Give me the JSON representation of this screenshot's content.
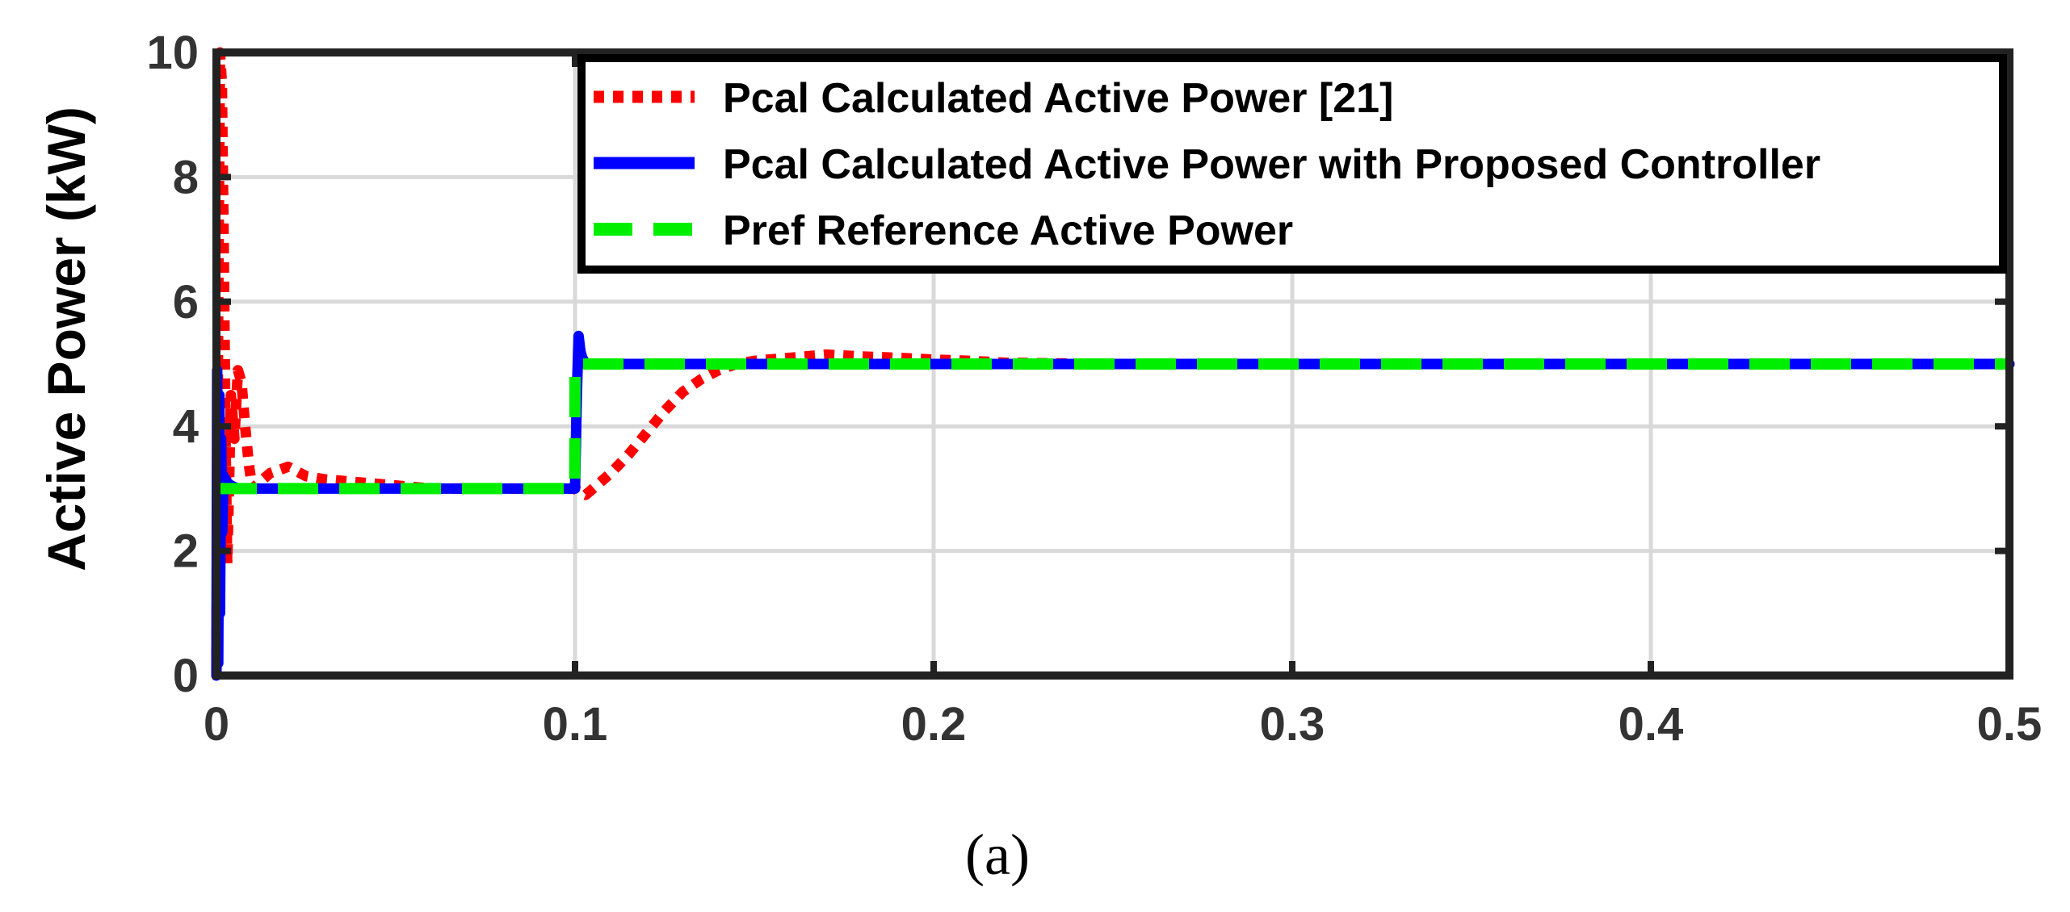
{
  "chart_data": {
    "type": "line",
    "title": "",
    "xlabel": "",
    "ylabel": "Active Power (kW)",
    "caption": "(a)",
    "xlim": [
      0,
      0.5
    ],
    "ylim": [
      0,
      10
    ],
    "xticks": [
      0,
      0.1,
      0.2,
      0.3,
      0.4,
      0.5
    ],
    "xtick_labels": [
      "0",
      "0.1",
      "0.2",
      "0.3",
      "0.4",
      "0.5"
    ],
    "yticks": [
      0,
      2,
      4,
      6,
      8,
      10
    ],
    "ytick_labels": [
      "0",
      "2",
      "4",
      "6",
      "8",
      "10"
    ],
    "grid": true,
    "legend_position": "top-right",
    "series": [
      {
        "name": "Pcal Calculated Active Power [21]",
        "color": "#ff0000",
        "style": "dotted",
        "x": [
          0,
          0.0005,
          0.001,
          0.0015,
          0.002,
          0.0025,
          0.003,
          0.0035,
          0.004,
          0.005,
          0.006,
          0.007,
          0.008,
          0.009,
          0.01,
          0.012,
          0.015,
          0.02,
          0.025,
          0.03,
          0.04,
          0.05,
          0.06,
          0.07,
          0.08,
          0.09,
          0.1,
          0.101,
          0.103,
          0.105,
          0.11,
          0.115,
          0.12,
          0.125,
          0.13,
          0.135,
          0.14,
          0.145,
          0.15,
          0.16,
          0.17,
          0.18,
          0.19,
          0.2,
          0.21,
          0.22,
          0.25,
          0.3,
          0.4,
          0.5
        ],
        "y": [
          0,
          6,
          10,
          9.5,
          7,
          4,
          1.8,
          3,
          4.5,
          3.8,
          4.9,
          4.7,
          4.0,
          3.4,
          3.0,
          3.1,
          3.25,
          3.35,
          3.2,
          3.15,
          3.1,
          3.05,
          3.0,
          3.0,
          3.0,
          3.0,
          3.0,
          2.95,
          2.9,
          3.0,
          3.25,
          3.55,
          3.9,
          4.25,
          4.55,
          4.75,
          4.9,
          5.0,
          5.05,
          5.1,
          5.15,
          5.12,
          5.1,
          5.07,
          5.05,
          5.02,
          5.0,
          5.0,
          5.0,
          5.0
        ]
      },
      {
        "name": "Pcal Calculated Active Power with Proposed Controller",
        "color": "#0000ff",
        "style": "solid",
        "x": [
          0,
          0.0002,
          0.0005,
          0.0008,
          0.001,
          0.0013,
          0.0016,
          0.002,
          0.003,
          0.004,
          0.006,
          0.01,
          0.05,
          0.0995,
          0.1,
          0.1005,
          0.101,
          0.1015,
          0.102,
          0.103,
          0.105,
          0.11,
          0.2,
          0.3,
          0.4,
          0.5
        ],
        "y": [
          0,
          4.9,
          0.2,
          4.5,
          1.0,
          3.8,
          2.3,
          3.2,
          3.1,
          3.05,
          3.0,
          3.0,
          3.0,
          3.0,
          3.0,
          4.5,
          5.45,
          5.2,
          5.1,
          5.0,
          5.0,
          5.0,
          5.0,
          5.0,
          5.0,
          5.0
        ]
      },
      {
        "name": "Pref Reference Active Power",
        "color": "#00ee00",
        "style": "dashed",
        "x": [
          0,
          0.0999,
          0.1,
          0.5
        ],
        "y": [
          3,
          3,
          5,
          5
        ]
      }
    ]
  }
}
